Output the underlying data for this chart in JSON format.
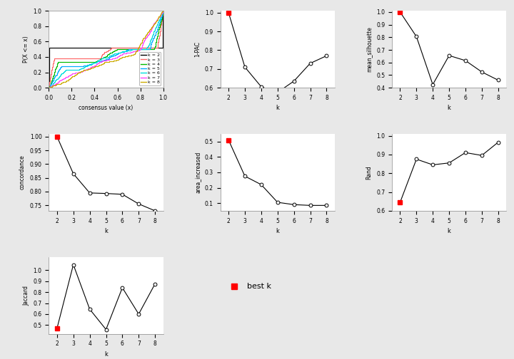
{
  "k_values": [
    2,
    3,
    4,
    5,
    6,
    7,
    8
  ],
  "one_pac": [
    1.0,
    0.71,
    0.605,
    0.575,
    0.635,
    0.73,
    0.77
  ],
  "mean_silhouette": [
    1.0,
    0.805,
    0.425,
    0.655,
    0.615,
    0.525,
    0.46
  ],
  "concordance": [
    1.0,
    0.865,
    0.795,
    0.793,
    0.79,
    0.755,
    0.73
  ],
  "area_increased": [
    0.51,
    0.275,
    0.22,
    0.105,
    0.09,
    0.085,
    0.085
  ],
  "rand": [
    0.645,
    0.875,
    0.845,
    0.855,
    0.91,
    0.895,
    0.965
  ],
  "jaccard": [
    0.47,
    1.05,
    0.645,
    0.46,
    0.84,
    0.6,
    0.875
  ],
  "ecdf_colors": [
    "#000000",
    "#FF6666",
    "#00BB00",
    "#00AAFF",
    "#00DDDD",
    "#FF44FF",
    "#CCAA00"
  ],
  "ecdf_labels": [
    "k = 2",
    "k = 3",
    "k = 4",
    "k = 5",
    "k = 6",
    "k = 7",
    "k = 8"
  ],
  "bg_color": "#e8e8e8",
  "panel_bg": "#ffffff"
}
